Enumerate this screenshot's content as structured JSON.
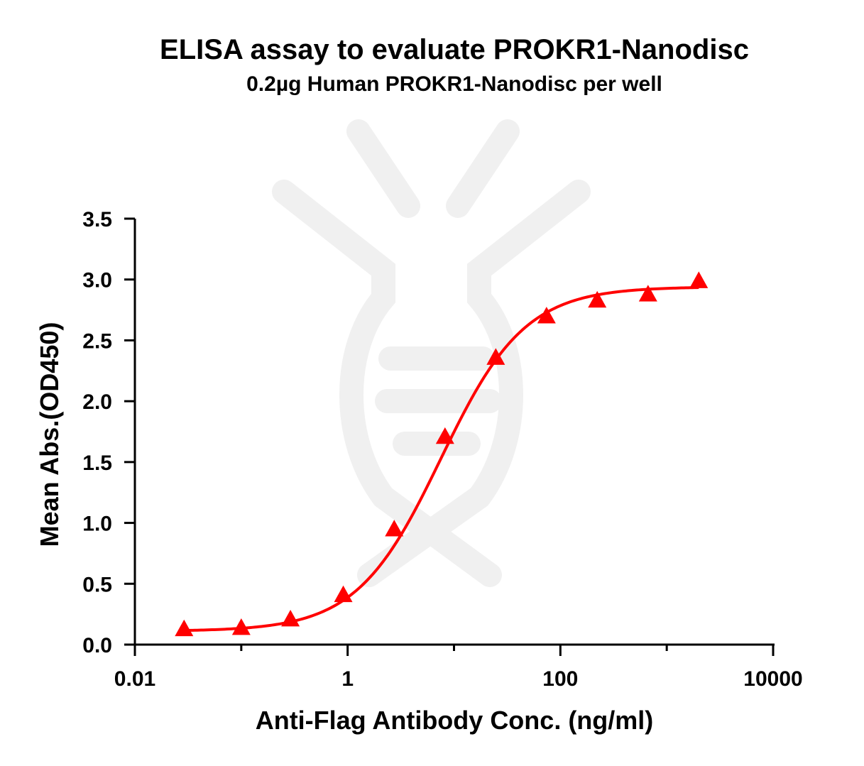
{
  "chart_data": {
    "type": "scatter",
    "title": "ELISA assay to evaluate PROKR1-Nanodisc",
    "subtitle": "0.2µg Human PROKR1-Nanodisc per well",
    "xlabel": "Anti-Flag Antibody Conc. (ng/ml)",
    "ylabel": "Mean Abs.(OD450)",
    "x_scale": "log",
    "xlim": [
      0.01,
      10000
    ],
    "ylim": [
      0,
      3.5
    ],
    "x_ticks": [
      0.01,
      1,
      100,
      10000
    ],
    "x_tick_labels": [
      "0.01",
      "1",
      "100",
      "10000"
    ],
    "y_ticks": [
      0,
      0.5,
      1,
      1.5,
      2,
      2.5,
      3,
      3.5
    ],
    "y_tick_labels": [
      "0.0",
      "0.5",
      "1.0",
      "1.5",
      "2.0",
      "2.5",
      "3.0",
      "3.5"
    ],
    "grid": false,
    "legend": "none",
    "series": [
      {
        "marker": "triangle",
        "color": "#ff0000",
        "x": [
          0.029,
          0.1,
          0.29,
          0.91,
          2.74,
          8.23,
          24.7,
          74.1,
          222,
          667,
          2000
        ],
        "y": [
          0.13,
          0.14,
          0.21,
          0.41,
          0.95,
          1.71,
          2.36,
          2.7,
          2.83,
          2.88,
          2.99
        ]
      }
    ],
    "fit_curve": {
      "model": "4PL",
      "color": "#ff0000",
      "bottom": 0.11,
      "top": 2.94,
      "ec50": 7.5,
      "hill": 1.1
    }
  }
}
